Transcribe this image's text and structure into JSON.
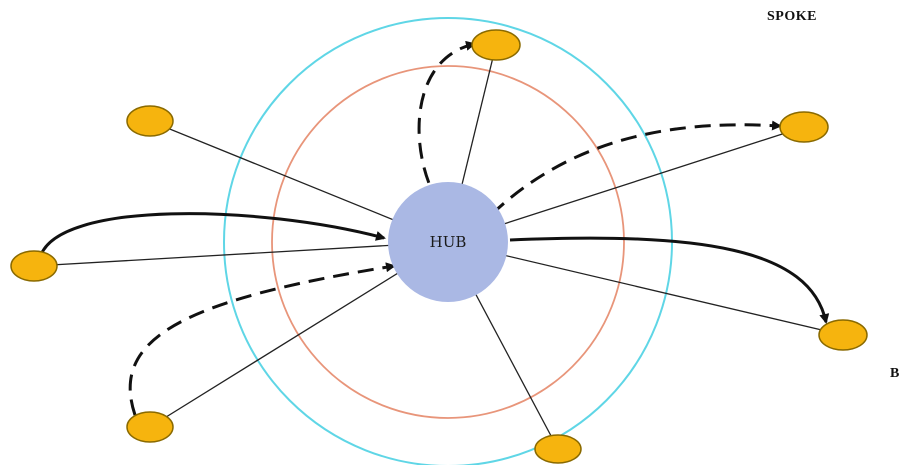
{
  "labels": {
    "hub": "HUB",
    "spoke": "SPOKE",
    "edge_fragment": "B"
  },
  "colors": {
    "spoke_fill": "#f6b40e",
    "spoke_stroke": "#8a6a00",
    "hub_fill": "#aab8e4",
    "inner_ring": "#e8957a",
    "outer_ring": "#5fd6e6",
    "line": "#222222"
  },
  "spokes": [
    {
      "id": "top"
    },
    {
      "id": "upper-left"
    },
    {
      "id": "upper-right"
    },
    {
      "id": "left"
    },
    {
      "id": "right"
    },
    {
      "id": "lower-left"
    },
    {
      "id": "bottom"
    }
  ],
  "flows": [
    {
      "id": "left-to-hub",
      "style": "solid"
    },
    {
      "id": "lower-left-to-hub",
      "style": "dashed"
    },
    {
      "id": "hub-to-top",
      "style": "dashed"
    },
    {
      "id": "hub-to-upper-right",
      "style": "dashed"
    },
    {
      "id": "hub-to-right",
      "style": "solid"
    }
  ]
}
